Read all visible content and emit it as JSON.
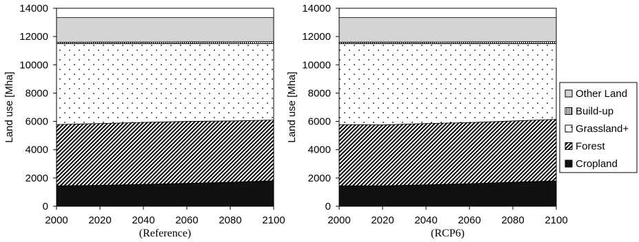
{
  "chart_data": [
    {
      "type": "area",
      "stacked": true,
      "subtitle": "(Reference)",
      "ylabel": "Land use [Mha]",
      "xlim": [
        2000,
        2100
      ],
      "ylim": [
        0,
        14000
      ],
      "x_ticks": [
        "2000",
        "2020",
        "2040",
        "2060",
        "2080",
        "2100"
      ],
      "y_ticks": [
        "0",
        "2000",
        "4000",
        "6000",
        "8000",
        "10000",
        "12000",
        "14000"
      ],
      "x": [
        2000,
        2020,
        2040,
        2060,
        2080,
        2100
      ],
      "series": [
        {
          "name": "Cropland",
          "values": [
            1450,
            1480,
            1550,
            1620,
            1700,
            1800
          ]
        },
        {
          "name": "Forest",
          "values": [
            4330,
            4370,
            4380,
            4380,
            4330,
            4300
          ]
        },
        {
          "name": "Grassland+",
          "values": [
            5720,
            5650,
            5570,
            5500,
            5460,
            5400
          ]
        },
        {
          "name": "Build-up",
          "values": [
            100,
            110,
            110,
            120,
            130,
            140
          ]
        },
        {
          "name": "Other Land",
          "values": [
            1750,
            1740,
            1740,
            1730,
            1730,
            1710
          ]
        }
      ]
    },
    {
      "type": "area",
      "stacked": true,
      "subtitle": "(RCP6)",
      "ylabel": "Land use [Mha]",
      "xlim": [
        2000,
        2100
      ],
      "ylim": [
        0,
        14000
      ],
      "x_ticks": [
        "2000",
        "2020",
        "2040",
        "2060",
        "2080",
        "2100"
      ],
      "y_ticks": [
        "0",
        "2000",
        "4000",
        "6000",
        "8000",
        "10000",
        "12000",
        "14000"
      ],
      "x": [
        2000,
        2020,
        2040,
        2060,
        2080,
        2100
      ],
      "series": [
        {
          "name": "Cropland",
          "values": [
            1450,
            1450,
            1520,
            1600,
            1700,
            1800
          ]
        },
        {
          "name": "Forest",
          "values": [
            4330,
            4300,
            4330,
            4320,
            4330,
            4350
          ]
        },
        {
          "name": "Grassland+",
          "values": [
            5720,
            5750,
            5650,
            5580,
            5470,
            5350
          ]
        },
        {
          "name": "Build-up",
          "values": [
            100,
            110,
            110,
            120,
            130,
            140
          ]
        },
        {
          "name": "Other Land",
          "values": [
            1750,
            1740,
            1740,
            1730,
            1720,
            1710
          ]
        }
      ]
    }
  ],
  "legend": {
    "position": "right",
    "items": [
      "Other Land",
      "Build-up",
      "Grassland+",
      "Forest",
      "Cropland"
    ]
  },
  "patterns": {
    "Other Land": "solid-gray",
    "Build-up": "vertical-lines",
    "Grassland+": "dots",
    "Forest": "diagonal-hatch",
    "Cropland": "solid-black"
  },
  "colors": {
    "other_land": "#d4d4d4",
    "cropland": "#111111",
    "frame": "#000000"
  }
}
